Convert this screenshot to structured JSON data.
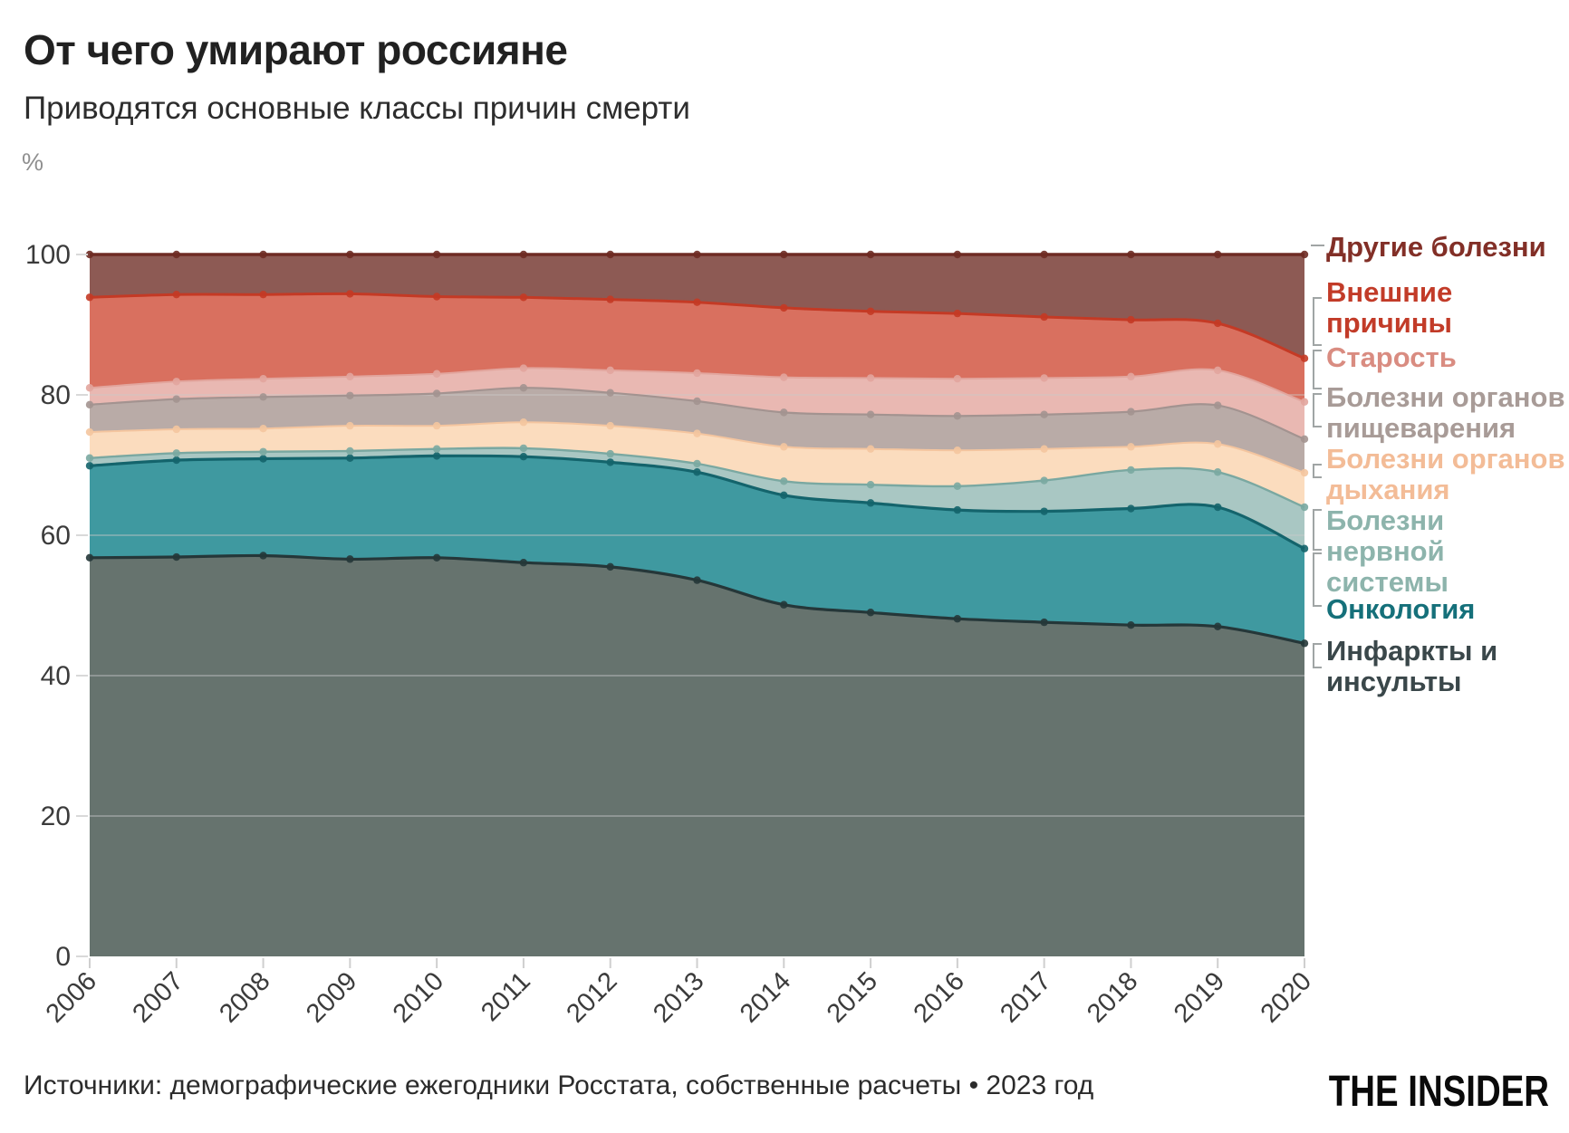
{
  "header": {
    "title": "От чего умирают россияне",
    "subtitle": "Приводятся основные классы причин смерти",
    "unit_label": "%"
  },
  "footer": {
    "source": "Источники: демографические ежегодники Росстата, собственные расчеты • 2023 год",
    "logo": "THE INSIDER"
  },
  "chart_data": {
    "type": "area",
    "subtype": "stacked-area-100",
    "unit": "%",
    "ylim": [
      0,
      100
    ],
    "yticks": [
      0,
      20,
      40,
      60,
      80,
      100
    ],
    "grid": "horizontal",
    "legend_position": "right",
    "years": [
      2006,
      2007,
      2008,
      2009,
      2010,
      2011,
      2012,
      2013,
      2014,
      2015,
      2016,
      2017,
      2018,
      2019,
      2020
    ],
    "stack_order": "bottom-to-top",
    "series": [
      {
        "key": "infarkty_insulty",
        "label": "Инфаркты и\nинсульты",
        "values": [
          56.8,
          56.9,
          57.1,
          56.6,
          56.8,
          56.1,
          55.5,
          53.6,
          50.1,
          49.0,
          48.1,
          47.6,
          47.2,
          47.0,
          44.6
        ],
        "fill_color": "#66736e",
        "line_color": "#253739",
        "label_color": "#3a474a"
      },
      {
        "key": "onkologia",
        "label": "Онкология",
        "values": [
          13.1,
          13.8,
          13.8,
          14.4,
          14.5,
          15.1,
          14.9,
          15.4,
          15.6,
          15.6,
          15.5,
          15.8,
          16.6,
          17.0,
          13.5
        ],
        "fill_color": "#3f99a0",
        "line_color": "#14646c",
        "label_color": "#15707a"
      },
      {
        "key": "bolezni_nervnoy_sistemy",
        "label": "Болезни\nнервной\nсистемы",
        "values": [
          1.1,
          1.0,
          1.0,
          1.0,
          1.0,
          1.2,
          1.2,
          1.2,
          2.0,
          2.6,
          3.4,
          4.4,
          5.5,
          5.0,
          5.9
        ],
        "fill_color": "#a9c7c3",
        "line_color": "#7aa8a1",
        "label_color": "#8db4ac"
      },
      {
        "key": "bolezni_organov_dykhania",
        "label": "Болезни органов\nдыхания",
        "values": [
          3.7,
          3.4,
          3.3,
          3.6,
          3.3,
          3.7,
          4.0,
          4.3,
          4.9,
          5.1,
          5.1,
          4.5,
          3.3,
          4.0,
          4.9
        ],
        "fill_color": "#fbdcbe",
        "line_color": "#f4c59f",
        "label_color": "#f3bc97"
      },
      {
        "key": "bolezni_organov_pishchevarenia",
        "label": "Болезни органов\nпищеварения",
        "values": [
          3.9,
          4.3,
          4.5,
          4.3,
          4.6,
          4.9,
          4.7,
          4.6,
          4.9,
          4.9,
          4.9,
          4.9,
          5.0,
          5.5,
          4.8
        ],
        "fill_color": "#b9aba7",
        "line_color": "#a39390",
        "label_color": "#a89b97"
      },
      {
        "key": "starost",
        "label": "Старость",
        "values": [
          2.4,
          2.5,
          2.6,
          2.7,
          2.8,
          2.8,
          3.2,
          4.0,
          5.0,
          5.2,
          5.3,
          5.2,
          5.0,
          5.0,
          5.3
        ],
        "fill_color": "#e9b8b2",
        "line_color": "#e2a59d",
        "label_color": "#d98c81"
      },
      {
        "key": "vneshnie_prichiny",
        "label": "Внешние\nпричины",
        "values": [
          12.9,
          12.4,
          12.0,
          11.8,
          11.0,
          10.1,
          10.1,
          10.1,
          9.9,
          9.5,
          9.3,
          8.7,
          8.1,
          6.7,
          6.2
        ],
        "fill_color": "#d9705f",
        "line_color": "#c43a25",
        "label_color": "#c23b28"
      },
      {
        "key": "drugie_bolezni",
        "label": "Другие болезни",
        "values": [
          6.1,
          5.7,
          5.7,
          5.6,
          6.0,
          6.1,
          6.4,
          6.8,
          7.6,
          8.1,
          8.4,
          8.9,
          9.3,
          9.8,
          14.8
        ],
        "fill_color": "#8d5a54",
        "line_color": "#6e2b23",
        "label_color": "#822f27"
      }
    ]
  }
}
